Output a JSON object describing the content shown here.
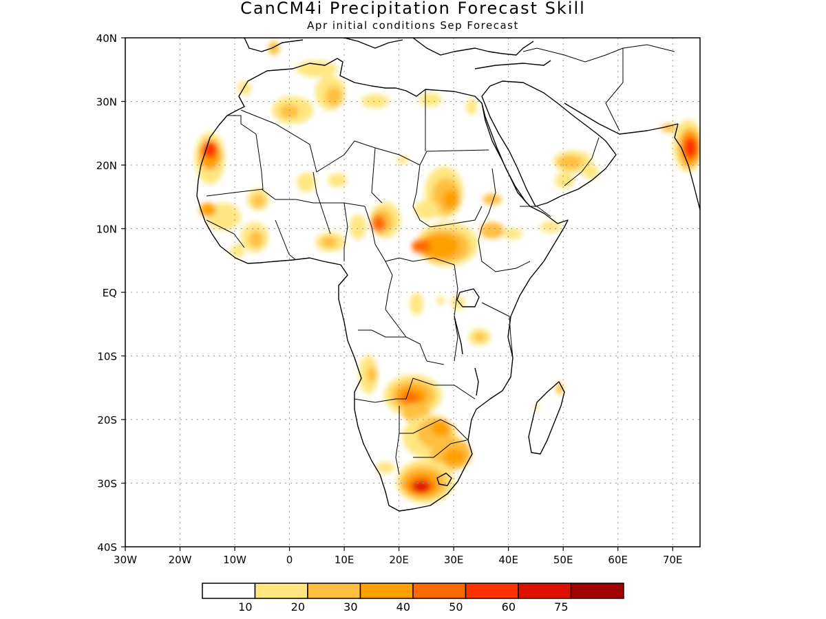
{
  "title": "CanCM4i Precipitation Forecast Skill",
  "subtitle": "Apr initial conditions  Sep Forecast",
  "map": {
    "lon_range": [
      -30,
      75
    ],
    "lat_range": [
      -40,
      40
    ],
    "lat_ticks": [
      "40N",
      "30N",
      "20N",
      "10N",
      "EQ",
      "10S",
      "20S",
      "30S",
      "40S"
    ],
    "lon_ticks": [
      "30W",
      "20W",
      "10W",
      "0",
      "10E",
      "20E",
      "30E",
      "40E",
      "50E",
      "60E",
      "70E"
    ],
    "grid": "dotted"
  },
  "colorbar": {
    "levels": [
      "10",
      "20",
      "30",
      "40",
      "50",
      "60",
      "75"
    ],
    "colors": [
      "#ffffff",
      "#ffe680",
      "#ffbf40",
      "#ffa000",
      "#ff6a00",
      "#ff3300",
      "#dd1100",
      "#a00000"
    ]
  },
  "skill_regions": [
    {
      "name": "w-mauritania",
      "lon": -14.5,
      "lat": 21.5,
      "r": 2.3,
      "level": 6
    },
    {
      "name": "nw-sahara",
      "lon": 2,
      "lat": 28.5,
      "r": 2.5,
      "level": 3
    },
    {
      "name": "sudan-chad",
      "lon": 28,
      "lat": 16,
      "r": 3.2,
      "level": 4
    },
    {
      "name": "cameroon",
      "lon": 16.5,
      "lat": 10.5,
      "r": 2,
      "level": 5
    },
    {
      "name": "south-sudan",
      "lon": 26,
      "lat": 8,
      "r": 4,
      "level": 4
    },
    {
      "name": "angola-zambia",
      "lon": 22.5,
      "lat": -16.5,
      "r": 3,
      "level": 5
    },
    {
      "name": "botswana",
      "lon": 26,
      "lat": -23,
      "r": 3,
      "level": 4
    },
    {
      "name": "south-africa",
      "lon": 25,
      "lat": -31,
      "r": 2.7,
      "level": 6
    },
    {
      "name": "india-west",
      "lon": 72.5,
      "lat": 22,
      "r": 2,
      "level": 5
    }
  ]
}
